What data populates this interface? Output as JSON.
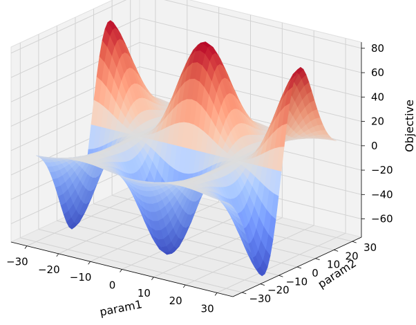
{
  "chart_data": {
    "type": "surface3d",
    "title": "",
    "xlabel": "param1",
    "ylabel": "param2",
    "zlabel": "Objective",
    "xlim": [
      -35,
      35
    ],
    "ylim": [
      -35,
      35
    ],
    "zlim": [
      -75,
      85
    ],
    "xticks": [
      "−30",
      "−20",
      "−10",
      "0",
      "10",
      "20",
      "30"
    ],
    "xtick_values": [
      -30,
      -20,
      -10,
      0,
      10,
      20,
      30
    ],
    "yticks": [
      "−30",
      "−20",
      "−10",
      "0",
      "10",
      "20",
      "30"
    ],
    "ytick_values": [
      -30,
      -20,
      -10,
      0,
      10,
      20,
      30
    ],
    "zticks": [
      "−60",
      "−40",
      "−20",
      "0",
      "20",
      "40",
      "60",
      "80"
    ],
    "ztick_values": [
      -60,
      -40,
      -20,
      0,
      20,
      40,
      60,
      80
    ],
    "surface": {
      "function": "cos(param1/10)^2 * (param2/10) * exp(-(param2/10)^2/2) * 132",
      "x_range": [
        -30,
        30
      ],
      "y_range": [
        -30,
        30
      ],
      "peak": {
        "param1": 0,
        "param2": 10,
        "objective": 80
      },
      "trough": {
        "param1": 0,
        "param2": -10,
        "objective": -80
      }
    },
    "colormap": "coolwarm",
    "colors": {
      "low": "#3b4cc0",
      "mid": "#dddddd",
      "high": "#b40426"
    },
    "grid": true
  }
}
